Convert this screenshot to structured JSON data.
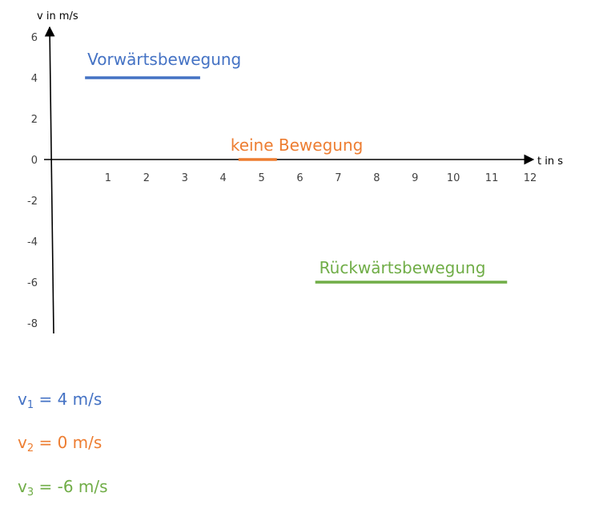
{
  "chart_data": {
    "type": "line",
    "xlabel": "t in s",
    "ylabel": "v in m/s",
    "xlim": [
      0,
      12.5
    ],
    "ylim": [
      -8.6,
      6.2
    ],
    "x_ticks": [
      1,
      2,
      3,
      4,
      5,
      6,
      7,
      8,
      9,
      10,
      11,
      12
    ],
    "y_ticks": [
      6,
      4,
      2,
      0,
      -2,
      -4,
      -6,
      -8
    ],
    "grid": false,
    "series": [
      {
        "name": "Vorwärtsbewegung",
        "color": "#4472C4",
        "x": [
          0.4,
          3.4
        ],
        "y": [
          4,
          4
        ]
      },
      {
        "name": "keine Bewegung",
        "color": "#ED7D31",
        "x": [
          4.4,
          5.4
        ],
        "y": [
          0,
          0
        ]
      },
      {
        "name": "Rückwärtsbewegung",
        "color": "#70AD47",
        "x": [
          6.4,
          11.4
        ],
        "y": [
          -6,
          -6
        ]
      }
    ]
  },
  "formulas": [
    {
      "var": "v",
      "sub": "1",
      "rest": " = 4 m/s",
      "color": "#4472C4"
    },
    {
      "var": "v",
      "sub": "2",
      "rest": " = 0 m/s",
      "color": "#ED7D31"
    },
    {
      "var": "v",
      "sub": "3",
      "rest": " = -6 m/s",
      "color": "#70AD47"
    }
  ]
}
